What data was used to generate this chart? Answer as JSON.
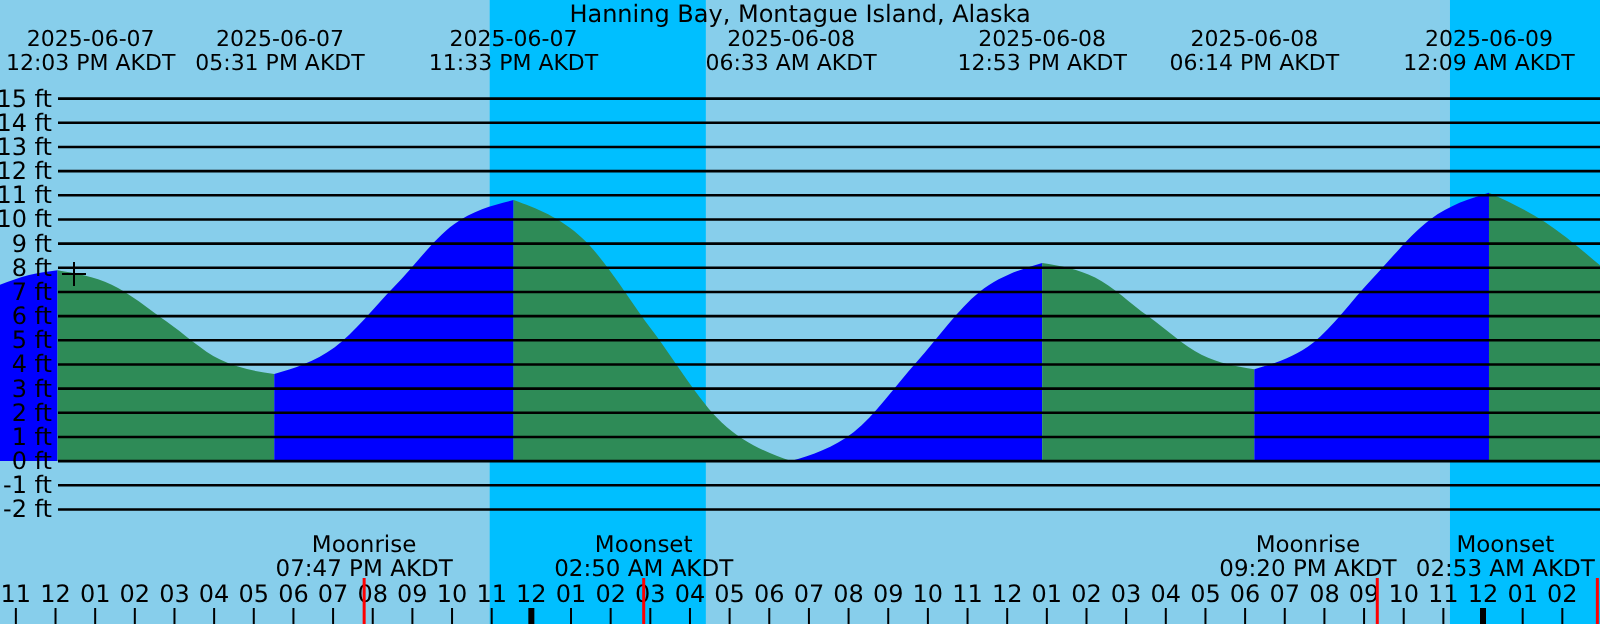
{
  "chart_data": {
    "type": "area",
    "title": "Hanning Bay, Montague Island, Alaska",
    "xlim": [
      "2025-06-07T10:36",
      "2025-06-09T02:57"
    ],
    "ylim": [
      -6.74,
      19.08
    ],
    "xticks": [
      {
        "value": "2025-06-07T11:00",
        "label": "11"
      },
      {
        "value": "2025-06-07T12:00",
        "label": "12"
      },
      {
        "value": "2025-06-07T13:00",
        "label": "01"
      },
      {
        "value": "2025-06-07T14:00",
        "label": "02"
      },
      {
        "value": "2025-06-07T15:00",
        "label": "03"
      },
      {
        "value": "2025-06-07T16:00",
        "label": "04"
      },
      {
        "value": "2025-06-07T17:00",
        "label": "05"
      },
      {
        "value": "2025-06-07T18:00",
        "label": "06"
      },
      {
        "value": "2025-06-07T19:00",
        "label": "07"
      },
      {
        "value": "2025-06-07T20:00",
        "label": "08"
      },
      {
        "value": "2025-06-07T21:00",
        "label": "09"
      },
      {
        "value": "2025-06-07T22:00",
        "label": "10"
      },
      {
        "value": "2025-06-07T23:00",
        "label": "11"
      },
      {
        "value": "2025-06-08T00:00",
        "label": "12"
      },
      {
        "value": "2025-06-08T01:00",
        "label": "01"
      },
      {
        "value": "2025-06-08T02:00",
        "label": "02"
      },
      {
        "value": "2025-06-08T03:00",
        "label": "03"
      },
      {
        "value": "2025-06-08T04:00",
        "label": "04"
      },
      {
        "value": "2025-06-08T05:00",
        "label": "05"
      },
      {
        "value": "2025-06-08T06:00",
        "label": "06"
      },
      {
        "value": "2025-06-08T07:00",
        "label": "07"
      },
      {
        "value": "2025-06-08T08:00",
        "label": "08"
      },
      {
        "value": "2025-06-08T09:00",
        "label": "09"
      },
      {
        "value": "2025-06-08T10:00",
        "label": "10"
      },
      {
        "value": "2025-06-08T11:00",
        "label": "11"
      },
      {
        "value": "2025-06-08T12:00",
        "label": "12"
      },
      {
        "value": "2025-06-08T13:00",
        "label": "01"
      },
      {
        "value": "2025-06-08T14:00",
        "label": "02"
      },
      {
        "value": "2025-06-08T15:00",
        "label": "03"
      },
      {
        "value": "2025-06-08T16:00",
        "label": "04"
      },
      {
        "value": "2025-06-08T17:00",
        "label": "05"
      },
      {
        "value": "2025-06-08T18:00",
        "label": "06"
      },
      {
        "value": "2025-06-08T19:00",
        "label": "07"
      },
      {
        "value": "2025-06-08T20:00",
        "label": "08"
      },
      {
        "value": "2025-06-08T21:00",
        "label": "09"
      },
      {
        "value": "2025-06-08T22:00",
        "label": "10"
      },
      {
        "value": "2025-06-08T23:00",
        "label": "11"
      },
      {
        "value": "2025-06-09T00:00",
        "label": "12"
      },
      {
        "value": "2025-06-09T01:00",
        "label": "01"
      },
      {
        "value": "2025-06-09T02:00",
        "label": "02"
      }
    ],
    "yticks": [
      {
        "value": 15,
        "label": "15 ft"
      },
      {
        "value": 14,
        "label": "14 ft"
      },
      {
        "value": 13,
        "label": "13 ft"
      },
      {
        "value": 12,
        "label": "12 ft"
      },
      {
        "value": 11,
        "label": "11 ft"
      },
      {
        "value": 10,
        "label": "10 ft"
      },
      {
        "value": 9,
        "label": "9 ft"
      },
      {
        "value": 8,
        "label": "8 ft"
      },
      {
        "value": 7,
        "label": "7 ft"
      },
      {
        "value": 6,
        "label": "6 ft"
      },
      {
        "value": 5,
        "label": "5 ft"
      },
      {
        "value": 4,
        "label": "4 ft"
      },
      {
        "value": 3,
        "label": "3 ft"
      },
      {
        "value": 2,
        "label": "2 ft"
      },
      {
        "value": 1,
        "label": "1 ft"
      },
      {
        "value": 0,
        "label": "0 ft"
      },
      {
        "value": -1,
        "label": "-1 ft"
      },
      {
        "value": -2,
        "label": "-2 ft"
      }
    ],
    "grid": "y",
    "series": [
      {
        "color": "#0000ff",
        "x": [
          "2025-06-07T10:36",
          "2025-06-07T11:20",
          "2025-06-07T12:03"
        ],
        "values": [
          7.3,
          7.7,
          7.9
        ]
      },
      {
        "color": "#2e8b57",
        "x": [
          "2025-06-07T12:03",
          "2025-06-07T13:25",
          "2025-06-07T14:47",
          "2025-06-07T16:09",
          "2025-06-07T17:31"
        ],
        "values": [
          7.9,
          7.3,
          5.8,
          4.2,
          3.6
        ]
      },
      {
        "color": "#0000ff",
        "x": [
          "2025-06-07T17:31",
          "2025-06-07T19:02",
          "2025-06-07T20:32",
          "2025-06-07T22:03",
          "2025-06-07T23:33"
        ],
        "values": [
          3.6,
          4.7,
          7.2,
          9.8,
          10.8
        ]
      },
      {
        "color": "#2e8b57",
        "x": [
          "2025-06-07T23:33",
          "2025-06-08T01:18",
          "2025-06-08T03:03",
          "2025-06-08T04:48",
          "2025-06-08T06:33"
        ],
        "values": [
          10.8,
          9.2,
          5.4,
          1.6,
          0.0
        ]
      },
      {
        "color": "#0000ff",
        "x": [
          "2025-06-08T06:33",
          "2025-06-08T08:08",
          "2025-06-08T09:43",
          "2025-06-08T11:18",
          "2025-06-08T12:53"
        ],
        "values": [
          0.0,
          1.2,
          4.1,
          7.0,
          8.2
        ]
      },
      {
        "color": "#2e8b57",
        "x": [
          "2025-06-08T12:53",
          "2025-06-08T14:13",
          "2025-06-08T15:33",
          "2025-06-08T16:54",
          "2025-06-08T18:14"
        ],
        "values": [
          8.2,
          7.6,
          6.0,
          4.4,
          3.8
        ]
      },
      {
        "color": "#0000ff",
        "x": [
          "2025-06-08T18:14",
          "2025-06-08T19:43",
          "2025-06-08T21:11",
          "2025-06-08T22:40",
          "2025-06-09T00:09"
        ],
        "values": [
          3.8,
          4.9,
          7.5,
          10.0,
          11.1
        ]
      },
      {
        "color": "#2e8b57",
        "x": [
          "2025-06-09T00:09",
          "2025-06-09T01:33",
          "2025-06-09T02:57"
        ],
        "values": [
          11.1,
          9.9,
          8.1
        ]
      }
    ],
    "bands": [
      {
        "axis": "x",
        "from": "2025-06-07T22:57",
        "to": "2025-06-08T04:24",
        "color": "#00bfff"
      },
      {
        "axis": "x",
        "from": "2025-06-08T23:10",
        "to": "2025-06-09T02:57",
        "color": "#00bfff"
      }
    ],
    "ref_lines": [
      {
        "axis": "x",
        "value": "2025-06-07T19:47",
        "label": "Moonrise\n07:47 PM AKDT",
        "color": "#ff0000"
      },
      {
        "axis": "x",
        "value": "2025-06-08T02:50",
        "label": "Moonset\n02:50 AM AKDT",
        "color": "#ff0000"
      },
      {
        "axis": "x",
        "value": "2025-06-08T21:20",
        "label": "Moonrise\n09:20 PM AKDT",
        "color": "#ff0000"
      },
      {
        "axis": "x",
        "value": "2025-06-09T02:53",
        "label": "Moonset\n02:53 AM AKDT",
        "color": "#ff0000"
      }
    ],
    "annotations": [
      "2025-06-07\n12:03 PM AKDT",
      "2025-06-07\n05:31 PM AKDT",
      "2025-06-07\n11:33 PM AKDT",
      "2025-06-08\n06:33 AM AKDT",
      "2025-06-08\n12:53 PM AKDT",
      "2025-06-08\n06:14 PM AKDT",
      "2025-06-09\n12:09 AM AKDT"
    ]
  }
}
